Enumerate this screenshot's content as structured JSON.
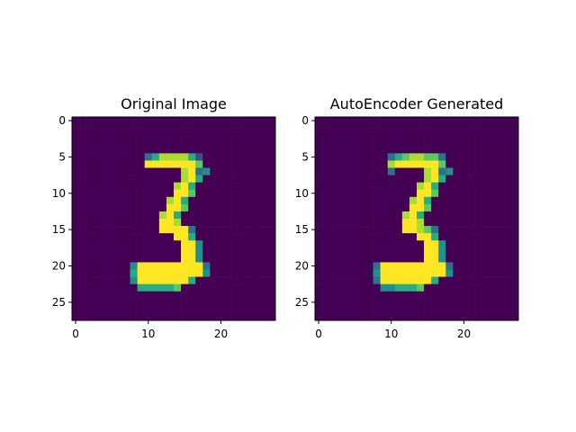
{
  "palette": [
    "#440154",
    "#472c7a",
    "#3b518b",
    "#2c718e",
    "#21908d",
    "#27ad81",
    "#5cc863",
    "#aadc32",
    "#fde725"
  ],
  "chart_data": [
    {
      "type": "heatmap",
      "title": "Original Image",
      "xlabel": "",
      "ylabel": "",
      "xlim": [
        -0.5,
        27.5
      ],
      "ylim": [
        27.5,
        -0.5
      ],
      "xticks": [
        0,
        10,
        20
      ],
      "yticks": [
        0,
        5,
        10,
        15,
        20,
        25
      ],
      "colormap": "viridis",
      "grid": false,
      "values": [
        "............................",
        "............................",
        "............................",
        "............................",
        "............................",
        "..........bdffffda..........",
        "..........ggggggge..........",
        "...............fgbc.........",
        "...............fgd..........",
        "..............fgd...........",
        "..............gge...........",
        ".............fgd............",
        ".............gge............",
        "............fgd.............",
        "............ggf.............",
        "............ggggb...........",
        "..............ggd...........",
        "...............ggc..........",
        "...............ggc..........",
        "...............ggc..........",
        "........cgggggggggb.........",
        "........dgggggggggc.........",
        "........cgggggggd...........",
        ".........ddddde.............",
        "............................",
        "............................",
        "............................",
        "............................"
      ]
    },
    {
      "type": "heatmap",
      "title": "AutoEncoder Generated",
      "xlabel": "",
      "ylabel": "",
      "xlim": [
        -0.5,
        27.5
      ],
      "ylim": [
        27.5,
        -0.5
      ],
      "xticks": [
        0,
        10,
        20
      ],
      "yticks": [
        0,
        5,
        10,
        15,
        20,
        25
      ],
      "colormap": "viridis",
      "grid": false,
      "values": [
        "............................",
        "............................",
        "............................",
        "............................",
        "............................",
        "..........bdeffeeb..........",
        "..........fgggggge..........",
        "..........b....fgbc.........",
        "...............fgd..........",
        "..............fgd...........",
        "..............gge...........",
        ".............fgd............",
        ".............gge............",
        "............fgd.............",
        "............ggf.............",
        "............ggfeb...........",
        "..............ggd...........",
        "...............ggc..........",
        "...............ggc..........",
        "...............ggc..........",
        "........bgggggggggb.........",
        "........cgggggggggc.........",
        "........bgggggggd...........",
        ".........ccddde.............",
        "............................",
        "............................",
        "............................",
        "............................"
      ]
    }
  ]
}
